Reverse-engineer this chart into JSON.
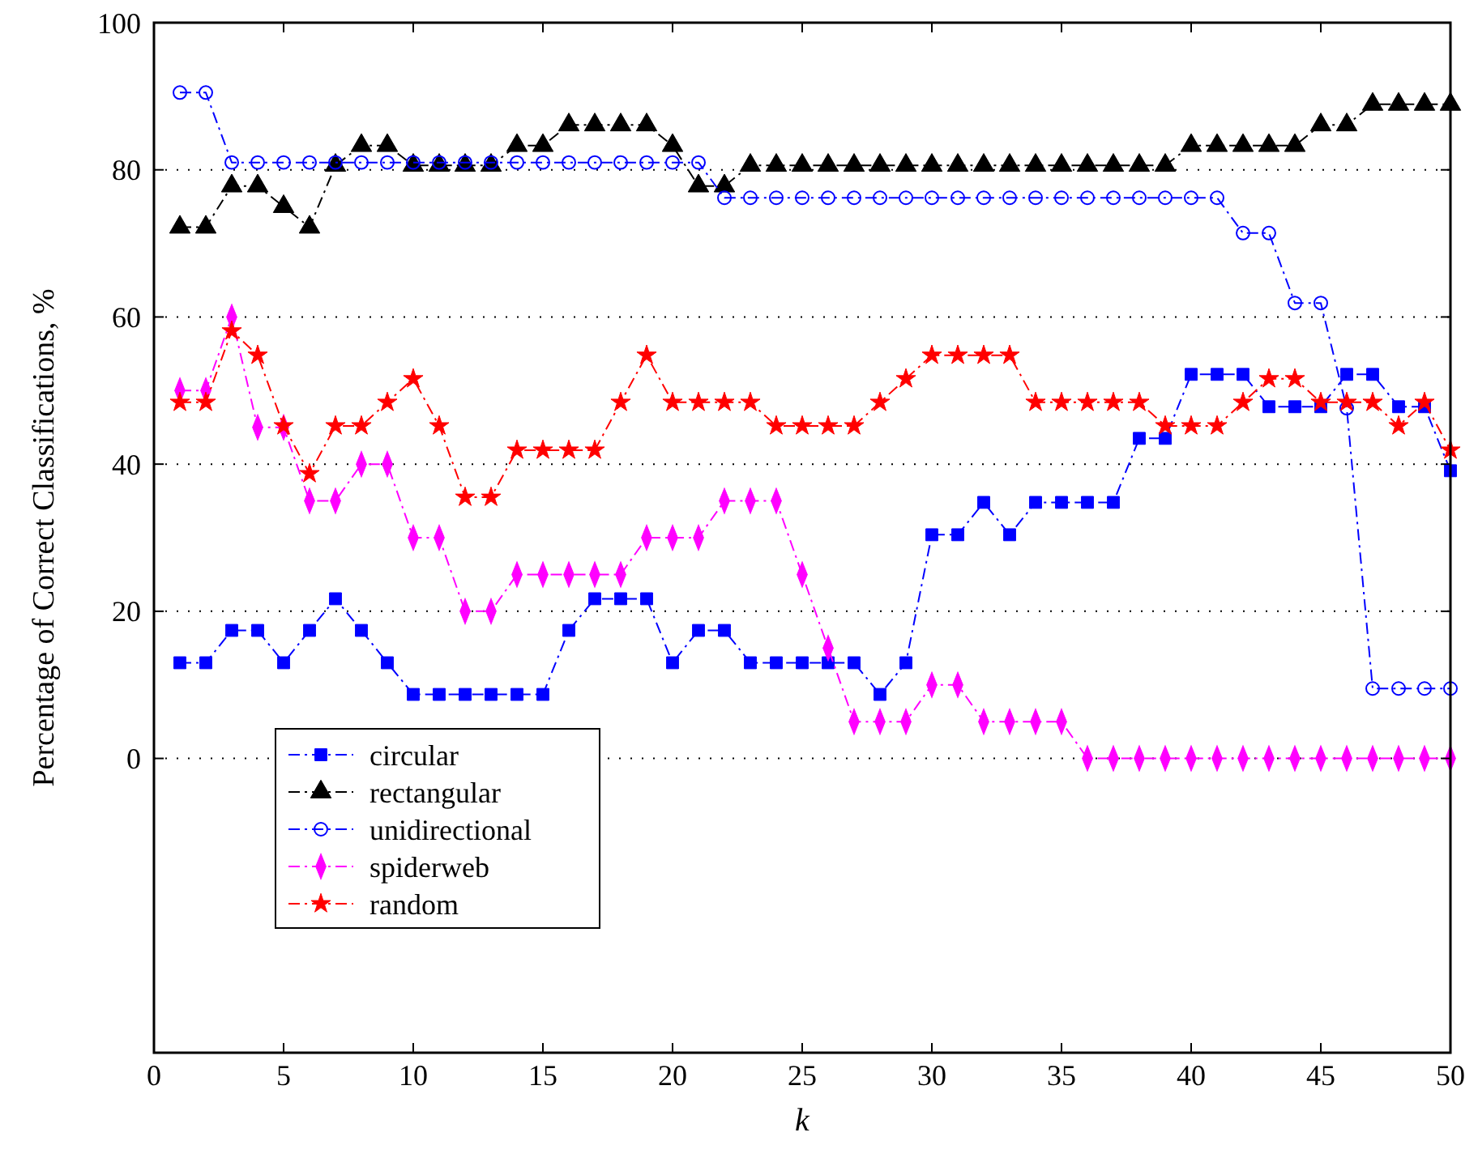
{
  "chart_data": {
    "type": "line",
    "xlabel": "k",
    "ylabel": "Percentage of Correct Classifications, %",
    "x": [
      1,
      2,
      3,
      4,
      5,
      6,
      7,
      8,
      9,
      10,
      11,
      12,
      13,
      14,
      15,
      16,
      17,
      18,
      19,
      20,
      21,
      22,
      23,
      24,
      25,
      26,
      27,
      28,
      29,
      30,
      31,
      32,
      33,
      34,
      35,
      36,
      37,
      38,
      39,
      40,
      41,
      42,
      43,
      44,
      45,
      46,
      47,
      48,
      49,
      50
    ],
    "xlim": [
      0,
      50
    ],
    "xticks": [
      0,
      5,
      10,
      15,
      20,
      25,
      30,
      35,
      40,
      45,
      50
    ],
    "ylim": [
      -40,
      100
    ],
    "yticks": [
      0,
      20,
      40,
      60,
      80,
      100
    ],
    "grid": "y",
    "legend": "bottom left",
    "line_style": "dashed",
    "series": [
      {
        "name": "circular",
        "color": "#0000ff",
        "marker": "square",
        "values": [
          13,
          13,
          17.4,
          17.4,
          13,
          17.4,
          21.7,
          17.4,
          13,
          8.7,
          8.7,
          8.7,
          8.7,
          8.7,
          8.7,
          17.4,
          21.7,
          21.7,
          21.7,
          13,
          17.4,
          17.4,
          13,
          13,
          13,
          13,
          13,
          8.7,
          13,
          30.4,
          30.4,
          34.8,
          30.4,
          34.8,
          34.8,
          34.8,
          34.8,
          43.5,
          43.5,
          52.2,
          52.2,
          52.2,
          47.8,
          47.8,
          47.8,
          52.2,
          52.2,
          47.8,
          47.8,
          39.1
        ]
      },
      {
        "name": "rectangular",
        "color": "#000000",
        "marker": "triangle",
        "values": [
          72.2,
          72.2,
          77.8,
          77.8,
          75,
          72.2,
          80.6,
          83.3,
          83.3,
          80.6,
          80.6,
          80.6,
          80.6,
          83.3,
          83.3,
          86.1,
          86.1,
          86.1,
          86.1,
          83.3,
          77.8,
          77.8,
          80.6,
          80.6,
          80.6,
          80.6,
          80.6,
          80.6,
          80.6,
          80.6,
          80.6,
          80.6,
          80.6,
          80.6,
          80.6,
          80.6,
          80.6,
          80.6,
          80.6,
          83.3,
          83.3,
          83.3,
          83.3,
          83.3,
          86.1,
          86.1,
          88.9,
          88.9,
          88.9,
          88.9
        ]
      },
      {
        "name": "unidirectional",
        "color": "#0000ff",
        "marker": "circle",
        "values": [
          90.5,
          90.5,
          81,
          81,
          81,
          81,
          81,
          81,
          81,
          81,
          81,
          81,
          81,
          81,
          81,
          81,
          81,
          81,
          81,
          81,
          81,
          76.2,
          76.2,
          76.2,
          76.2,
          76.2,
          76.2,
          76.2,
          76.2,
          76.2,
          76.2,
          76.2,
          76.2,
          76.2,
          76.2,
          76.2,
          76.2,
          76.2,
          76.2,
          76.2,
          76.2,
          71.4,
          71.4,
          61.9,
          61.9,
          47.6,
          9.5,
          9.5,
          9.5,
          9.5
        ]
      },
      {
        "name": "spiderweb",
        "color": "#ff00ff",
        "marker": "diamond",
        "values": [
          50,
          50,
          60,
          45,
          45,
          35,
          35,
          40,
          40,
          30,
          30,
          20,
          20,
          25,
          25,
          25,
          25,
          25,
          30,
          30,
          30,
          35,
          35,
          35,
          25,
          15,
          5,
          5,
          5,
          10,
          10,
          5,
          5,
          5,
          5,
          0,
          0,
          0,
          0,
          0,
          0,
          0,
          0,
          0,
          0,
          0,
          0,
          0,
          0,
          0
        ]
      },
      {
        "name": "random",
        "color": "#ff0000",
        "marker": "star",
        "values": [
          48.4,
          48.4,
          58.1,
          54.8,
          45.2,
          38.7,
          45.2,
          45.2,
          48.4,
          51.6,
          45.2,
          35.5,
          35.5,
          41.9,
          41.9,
          41.9,
          41.9,
          48.4,
          54.8,
          48.4,
          48.4,
          48.4,
          48.4,
          45.2,
          45.2,
          45.2,
          45.2,
          48.4,
          51.6,
          54.8,
          54.8,
          54.8,
          54.8,
          48.4,
          48.4,
          48.4,
          48.4,
          48.4,
          45.2,
          45.2,
          45.2,
          48.4,
          51.6,
          51.6,
          48.4,
          48.4,
          48.4,
          45.2,
          48.4,
          41.9
        ]
      }
    ]
  }
}
